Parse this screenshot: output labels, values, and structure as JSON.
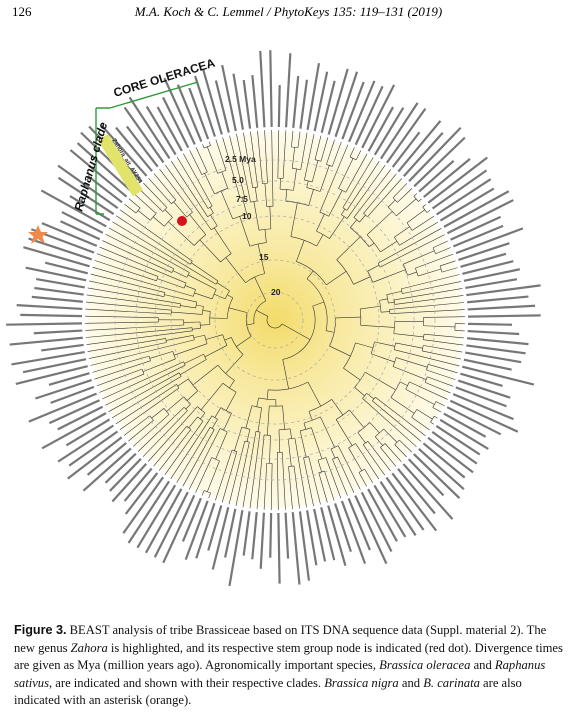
{
  "header": {
    "page_number": "126",
    "running_title": "M.A. Koch & C. Lemmel  /  PhytoKeys 135: 119–131 (2019)"
  },
  "figure": {
    "clade_labels": [
      "CORE OLERACEA",
      "Raphanus clade"
    ],
    "highlight_label": "Zahora_ait_AY254",
    "time_labels": [
      "2.5 Mya",
      "5.0",
      "7.5",
      "10",
      "15",
      "20"
    ]
  },
  "caption": {
    "label": "Figure 3.",
    "parts": [
      " BEAST analysis of tribe Brassiceae based on ITS DNA sequence data (Suppl. material 2). The new genus ",
      "Zahora",
      " is highlighted, and its respective stem group node is indicated (red dot). Divergence times are given as Mya (million years ago). Agronomically important species, ",
      "Brassica oleracea",
      " and ",
      "Raphanus sativus",
      ", are indicated and shown with their respective clades. ",
      "Brassica nigra",
      " and ",
      "B. carinata",
      " are also indicated with an asterisk (orange)."
    ]
  }
}
